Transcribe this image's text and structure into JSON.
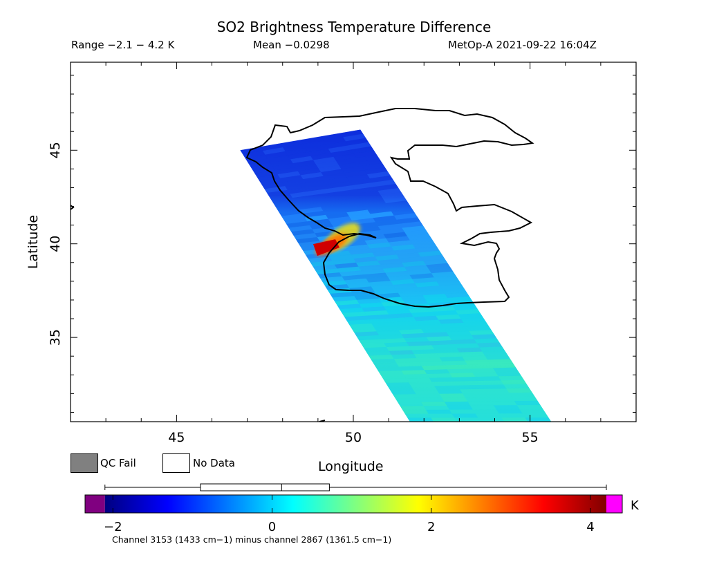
{
  "header": {
    "title": "SO2 Brightness Temperature Difference",
    "range": "Range −2.1 − 4.2 K",
    "mean": "Mean −0.0298",
    "satellite": "MetOp-A 2021-09-22 16:04Z"
  },
  "legend": {
    "qc_fail": "QC Fail",
    "no_data": "No Data",
    "qc_fail_color": "#808080",
    "no_data_color": "#ffffff"
  },
  "footnote": "Channel 3153 (1433 cm−1) minus channel 2867 (1361.5 cm−1)",
  "chart_data": {
    "type": "heatmap",
    "title": "SO2 Brightness Temperature Difference",
    "xlabel": "Longitude",
    "ylabel": "Latitude",
    "xlim": [
      42,
      58
    ],
    "ylim": [
      30.5,
      49.7
    ],
    "x_ticks": [
      45,
      50,
      55
    ],
    "y_ticks": [
      35,
      40,
      45
    ],
    "x_tick_labels": [
      "45",
      "50",
      "55"
    ],
    "y_tick_labels": [
      "35",
      "40",
      "45"
    ],
    "grid": false,
    "units": "K",
    "swath_corners": [
      [
        46.8,
        45.0
      ],
      [
        50.2,
        46.1
      ],
      [
        55.6,
        30.5
      ],
      [
        51.6,
        30.5
      ]
    ],
    "hotspot": {
      "lon": 49.1,
      "lat": 39.8,
      "value": 4.2
    },
    "colorbar": {
      "range": [
        -2.35,
        4.4
      ],
      "ticks": [
        -2,
        0,
        2,
        4
      ],
      "tick_labels": [
        "−2",
        "0",
        "2",
        "4"
      ],
      "unit_label": "K",
      "under_color": "#800080",
      "over_color": "#ff00ff",
      "colormap": [
        "#000080",
        "#0000ff",
        "#0080ff",
        "#00ffff",
        "#80ff80",
        "#ffff00",
        "#ff8000",
        "#ff0000",
        "#800000"
      ]
    },
    "boxplot": {
      "whisker_min": -2.1,
      "q1": -0.9,
      "median": 0.12,
      "q3": 0.72,
      "whisker_max": 4.2
    }
  }
}
